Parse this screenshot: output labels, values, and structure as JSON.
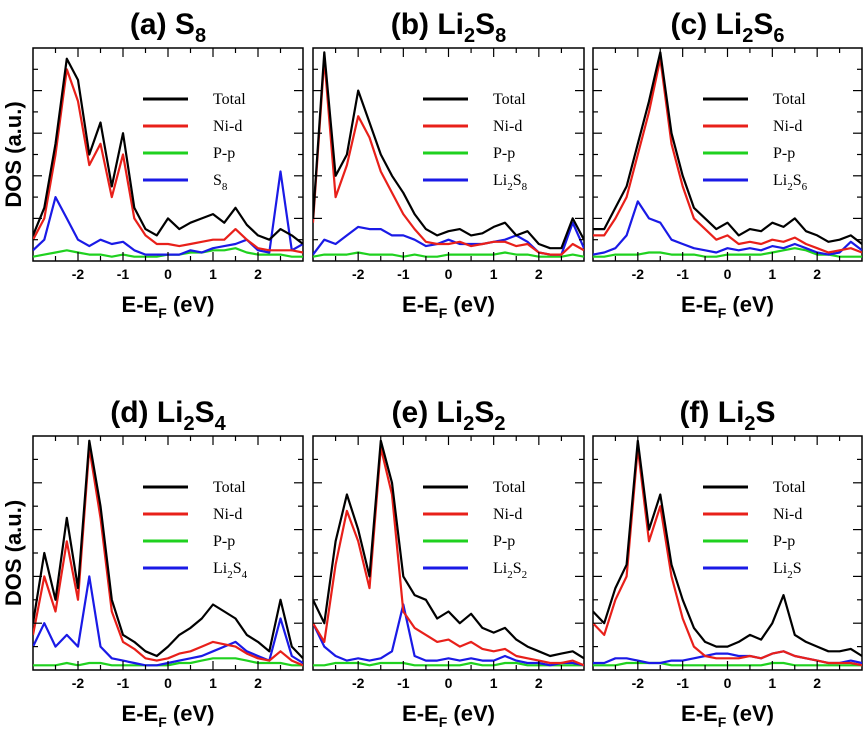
{
  "figure": {
    "xlabel": {
      "main": "E-E",
      "sub": "F",
      "unit": " (eV)"
    },
    "ylabel": "DOS (a.u.)"
  },
  "colors": {
    "Total": "#000000",
    "Ni-d": "#e8201a",
    "P-p": "#1fd11f",
    "adsorbate": "#1a1ae6"
  },
  "legend": {
    "total": "Total",
    "nid": "Ni-d",
    "pp": "P-p"
  },
  "panels": [
    {
      "id": "a",
      "title_pre": "(a) S",
      "title_sub": "8",
      "title_post": "",
      "ads_pre": "S",
      "ads_sub": "8",
      "ads_post": "",
      "show_ylabel": true
    },
    {
      "id": "b",
      "title_pre": "(b) Li",
      "title_sub": "2",
      "title_post": "S",
      "title_sub2": "8",
      "ads_pre": "Li",
      "ads_sub": "2",
      "ads_post": "S",
      "ads_sub2": "8",
      "show_ylabel": false
    },
    {
      "id": "c",
      "title_pre": "(c) Li",
      "title_sub": "2",
      "title_post": "S",
      "title_sub2": "6",
      "ads_pre": "Li",
      "ads_sub": "2",
      "ads_post": "S",
      "ads_sub2": "6",
      "show_ylabel": false
    },
    {
      "id": "d",
      "title_pre": "(d) Li",
      "title_sub": "2",
      "title_post": "S",
      "title_sub2": "4",
      "ads_pre": "Li",
      "ads_sub": "2",
      "ads_post": "S",
      "ads_sub2": "4",
      "show_ylabel": true
    },
    {
      "id": "e",
      "title_pre": "(e) Li",
      "title_sub": "2",
      "title_post": "S",
      "title_sub2": "2",
      "ads_pre": "Li",
      "ads_sub": "2",
      "ads_post": "S",
      "ads_sub2": "2",
      "show_ylabel": false
    },
    {
      "id": "f",
      "title_pre": "(f) Li",
      "title_sub": "2",
      "title_post": "S",
      "title_sub2": "",
      "ads_pre": "Li",
      "ads_sub": "2",
      "ads_post": "S",
      "ads_sub2": "",
      "show_ylabel": false
    }
  ],
  "chart_data": [
    {
      "type": "line",
      "title": "(a) S8",
      "xlim": [
        -3,
        3
      ],
      "ylim": [
        0,
        10
      ],
      "xticks": [
        -2,
        -1,
        0,
        1,
        2
      ],
      "x": [
        -3,
        -2.75,
        -2.5,
        -2.25,
        -2,
        -1.75,
        -1.5,
        -1.25,
        -1,
        -0.75,
        -0.5,
        -0.25,
        0,
        0.25,
        0.5,
        0.75,
        1,
        1.25,
        1.5,
        1.75,
        2,
        2.25,
        2.5,
        2.75,
        3
      ],
      "series": [
        {
          "name": "Total",
          "values": [
            1.2,
            2.5,
            5.5,
            9.5,
            8.5,
            5,
            6.5,
            3.5,
            6,
            2.5,
            1.5,
            1.2,
            2,
            1.5,
            1.8,
            2,
            2.2,
            1.8,
            2.5,
            1.7,
            1.2,
            1,
            1.5,
            1.2,
            0.8
          ]
        },
        {
          "name": "Ni-d",
          "values": [
            1,
            2,
            5,
            9,
            7.5,
            4.5,
            5.5,
            3,
            5,
            2,
            1.2,
            0.8,
            0.8,
            0.7,
            0.8,
            0.9,
            1,
            1,
            1.5,
            1,
            0.6,
            0.5,
            0.5,
            0.5,
            0.4
          ]
        },
        {
          "name": "P-p",
          "values": [
            0.2,
            0.3,
            0.4,
            0.5,
            0.4,
            0.3,
            0.3,
            0.2,
            0.3,
            0.2,
            0.2,
            0.2,
            0.3,
            0.3,
            0.4,
            0.4,
            0.5,
            0.5,
            0.6,
            0.4,
            0.3,
            0.3,
            0.3,
            0.2,
            0.2
          ]
        },
        {
          "name": "S8",
          "values": [
            0.5,
            1,
            3,
            2,
            1,
            0.7,
            1,
            0.8,
            0.9,
            0.5,
            0.3,
            0.3,
            0.3,
            0.3,
            0.5,
            0.4,
            0.6,
            0.7,
            0.8,
            1,
            0.5,
            0.4,
            4.2,
            0.5,
            0.8
          ]
        }
      ]
    },
    {
      "type": "line",
      "title": "(b) Li2S8",
      "xlim": [
        -3,
        3
      ],
      "ylim": [
        0,
        10
      ],
      "xticks": [
        -2,
        -1,
        0,
        1,
        2
      ],
      "x": [
        -3,
        -2.75,
        -2.5,
        -2.25,
        -2,
        -1.75,
        -1.5,
        -1.25,
        -1,
        -0.75,
        -0.5,
        -0.25,
        0,
        0.25,
        0.5,
        0.75,
        1,
        1.25,
        1.5,
        1.75,
        2,
        2.25,
        2.5,
        2.75,
        3
      ],
      "series": [
        {
          "name": "Total",
          "values": [
            2,
            9.8,
            4,
            5,
            8,
            6.5,
            5,
            4,
            3.2,
            2.2,
            1.5,
            1.2,
            1.4,
            1.5,
            1.2,
            1.3,
            1.6,
            1.8,
            1.2,
            1.4,
            0.8,
            0.6,
            0.6,
            2,
            1
          ]
        },
        {
          "name": "Ni-d",
          "values": [
            1.8,
            9.5,
            3,
            4.5,
            6.8,
            5.8,
            4.2,
            3.2,
            2.2,
            1.5,
            0.9,
            0.8,
            0.8,
            0.9,
            0.7,
            0.8,
            0.9,
            0.9,
            0.7,
            0.8,
            0.4,
            0.3,
            0.3,
            0.8,
            0.5
          ]
        },
        {
          "name": "P-p",
          "values": [
            0.2,
            0.3,
            0.3,
            0.3,
            0.4,
            0.3,
            0.3,
            0.3,
            0.2,
            0.3,
            0.2,
            0.2,
            0.3,
            0.3,
            0.3,
            0.3,
            0.3,
            0.4,
            0.3,
            0.3,
            0.2,
            0.2,
            0.2,
            0.3,
            0.2
          ]
        },
        {
          "name": "Li2S8",
          "values": [
            0.3,
            1,
            0.8,
            1.2,
            1.6,
            1.5,
            1.5,
            1.2,
            1.2,
            1,
            0.7,
            0.8,
            1,
            0.8,
            0.8,
            0.8,
            0.9,
            1,
            1.2,
            0.9,
            0.4,
            0.3,
            0.3,
            1.8,
            0.6
          ]
        }
      ]
    },
    {
      "type": "line",
      "title": "(c) Li2S6",
      "xlim": [
        -3,
        3
      ],
      "ylim": [
        0,
        10
      ],
      "xticks": [
        -2,
        -1,
        0,
        1,
        2
      ],
      "x": [
        -3,
        -2.75,
        -2.5,
        -2.25,
        -2,
        -1.75,
        -1.5,
        -1.25,
        -1,
        -0.75,
        -0.5,
        -0.25,
        0,
        0.25,
        0.5,
        0.75,
        1,
        1.25,
        1.5,
        1.75,
        2,
        2.25,
        2.5,
        2.75,
        3
      ],
      "series": [
        {
          "name": "Total",
          "values": [
            1.5,
            1.5,
            2.5,
            3.5,
            5.5,
            7.5,
            9.8,
            6,
            4,
            2.5,
            2,
            1.5,
            1.8,
            1.2,
            1.5,
            1.4,
            1.8,
            1.6,
            2,
            1.4,
            1.2,
            0.9,
            1,
            1.2,
            0.8
          ]
        },
        {
          "name": "Ni-d",
          "values": [
            1.2,
            1.2,
            2,
            3,
            5,
            7,
            9.5,
            5.5,
            3.5,
            2,
            1.5,
            1,
            1.2,
            0.8,
            0.9,
            0.8,
            1,
            0.9,
            1.1,
            0.8,
            0.6,
            0.4,
            0.5,
            0.6,
            0.4
          ]
        },
        {
          "name": "P-p",
          "values": [
            0.2,
            0.2,
            0.3,
            0.3,
            0.3,
            0.4,
            0.4,
            0.3,
            0.3,
            0.3,
            0.2,
            0.2,
            0.3,
            0.3,
            0.3,
            0.3,
            0.4,
            0.5,
            0.6,
            0.5,
            0.3,
            0.3,
            0.2,
            0.2,
            0.2
          ]
        },
        {
          "name": "Li2S6",
          "values": [
            0.3,
            0.4,
            0.6,
            1.2,
            2.8,
            2,
            1.8,
            1,
            0.8,
            0.6,
            0.5,
            0.4,
            0.6,
            0.5,
            0.6,
            0.5,
            0.7,
            0.6,
            0.8,
            0.6,
            0.4,
            0.3,
            0.4,
            0.9,
            0.5
          ]
        }
      ]
    },
    {
      "type": "line",
      "title": "(d) Li2S4",
      "xlim": [
        -3,
        3
      ],
      "ylim": [
        0,
        10
      ],
      "xticks": [
        -2,
        -1,
        0,
        1,
        2
      ],
      "x": [
        -3,
        -2.75,
        -2.5,
        -2.25,
        -2,
        -1.75,
        -1.5,
        -1.25,
        -1,
        -0.75,
        -0.5,
        -0.25,
        0,
        0.25,
        0.5,
        0.75,
        1,
        1.25,
        1.5,
        1.75,
        2,
        2.25,
        2.5,
        2.75,
        3
      ],
      "series": [
        {
          "name": "Total",
          "values": [
            2,
            5,
            3,
            6.5,
            3.5,
            9.8,
            7,
            3,
            1.5,
            1.2,
            0.8,
            0.6,
            1,
            1.5,
            1.8,
            2.2,
            2.8,
            2.5,
            2.2,
            1.5,
            1.2,
            0.8,
            3,
            1,
            0.5
          ]
        },
        {
          "name": "Ni-d",
          "values": [
            1.5,
            4,
            2.5,
            5.5,
            3,
            9.5,
            6.5,
            2.5,
            1.2,
            0.9,
            0.5,
            0.4,
            0.5,
            0.7,
            0.8,
            1,
            1.2,
            1.1,
            1,
            0.7,
            0.5,
            0.4,
            0.8,
            0.4,
            0.2
          ]
        },
        {
          "name": "P-p",
          "values": [
            0.2,
            0.2,
            0.2,
            0.3,
            0.2,
            0.3,
            0.3,
            0.2,
            0.2,
            0.2,
            0.2,
            0.2,
            0.2,
            0.3,
            0.3,
            0.4,
            0.5,
            0.5,
            0.5,
            0.4,
            0.3,
            0.3,
            0.3,
            0.2,
            0.2
          ]
        },
        {
          "name": "Li2S4",
          "values": [
            1,
            2,
            1,
            1.5,
            1,
            4,
            1,
            0.5,
            0.4,
            0.3,
            0.2,
            0.2,
            0.3,
            0.4,
            0.5,
            0.6,
            0.8,
            1,
            1.2,
            0.8,
            0.6,
            0.4,
            2.2,
            0.6,
            0.3
          ]
        }
      ]
    },
    {
      "type": "line",
      "title": "(e) Li2S2",
      "xlim": [
        -3,
        3
      ],
      "ylim": [
        0,
        10
      ],
      "xticks": [
        -2,
        -1,
        0,
        1,
        2
      ],
      "x": [
        -3,
        -2.75,
        -2.5,
        -2.25,
        -2,
        -1.75,
        -1.5,
        -1.25,
        -1,
        -0.75,
        -0.5,
        -0.25,
        0,
        0.25,
        0.5,
        0.75,
        1,
        1.25,
        1.5,
        1.75,
        2,
        2.25,
        2.5,
        2.75,
        3
      ],
      "series": [
        {
          "name": "Total",
          "values": [
            3,
            2,
            5.5,
            7.5,
            6,
            4,
            9.8,
            8,
            4,
            3.2,
            3,
            2.2,
            2.5,
            2,
            2.4,
            1.8,
            1.6,
            1.8,
            1.3,
            1,
            0.8,
            0.6,
            0.7,
            0.8,
            0.5
          ]
        },
        {
          "name": "Ni-d",
          "values": [
            2,
            1.2,
            4.5,
            6.8,
            5.5,
            3.5,
            9.5,
            7.5,
            2.5,
            1.8,
            1.5,
            1.2,
            1.3,
            1,
            1.2,
            0.9,
            0.8,
            0.9,
            0.6,
            0.5,
            0.4,
            0.3,
            0.3,
            0.4,
            0.2
          ]
        },
        {
          "name": "P-p",
          "values": [
            0.2,
            0.2,
            0.3,
            0.3,
            0.3,
            0.2,
            0.3,
            0.3,
            0.3,
            0.2,
            0.2,
            0.2,
            0.2,
            0.2,
            0.3,
            0.2,
            0.2,
            0.3,
            0.3,
            0.2,
            0.2,
            0.2,
            0.2,
            0.2,
            0.2
          ]
        },
        {
          "name": "Li2S2",
          "values": [
            2,
            1,
            0.6,
            0.4,
            0.5,
            0.4,
            0.5,
            0.8,
            2.8,
            0.6,
            0.4,
            0.4,
            0.5,
            0.4,
            0.5,
            0.4,
            0.4,
            0.6,
            0.4,
            0.3,
            0.3,
            0.2,
            0.3,
            0.3,
            0.2
          ]
        }
      ]
    },
    {
      "type": "line",
      "title": "(f) Li2S",
      "xlim": [
        -3,
        3
      ],
      "ylim": [
        0,
        10
      ],
      "xticks": [
        -2,
        -1,
        0,
        1,
        2
      ],
      "x": [
        -3,
        -2.75,
        -2.5,
        -2.25,
        -2,
        -1.75,
        -1.5,
        -1.25,
        -1,
        -0.75,
        -0.5,
        -0.25,
        0,
        0.25,
        0.5,
        0.75,
        1,
        1.25,
        1.5,
        1.75,
        2,
        2.25,
        2.5,
        2.75,
        3
      ],
      "series": [
        {
          "name": "Total",
          "values": [
            2.5,
            2,
            3.5,
            4.5,
            9.8,
            6,
            7.5,
            4.5,
            3,
            1.8,
            1.2,
            1,
            1,
            1.2,
            1.5,
            1.3,
            2,
            3.2,
            1.5,
            1.2,
            1,
            0.8,
            0.8,
            0.9,
            0.6
          ]
        },
        {
          "name": "Ni-d",
          "values": [
            2,
            1.5,
            3,
            4,
            9.5,
            5.5,
            7,
            4,
            2.2,
            1,
            0.6,
            0.5,
            0.5,
            0.5,
            0.6,
            0.5,
            0.7,
            0.8,
            0.6,
            0.5,
            0.4,
            0.3,
            0.3,
            0.3,
            0.2
          ]
        },
        {
          "name": "P-p",
          "values": [
            0.2,
            0.2,
            0.2,
            0.3,
            0.3,
            0.3,
            0.3,
            0.2,
            0.2,
            0.2,
            0.2,
            0.2,
            0.2,
            0.2,
            0.2,
            0.2,
            0.3,
            0.3,
            0.2,
            0.2,
            0.2,
            0.2,
            0.2,
            0.2,
            0.2
          ]
        },
        {
          "name": "Li2S",
          "values": [
            0.3,
            0.3,
            0.5,
            0.5,
            0.4,
            0.3,
            0.3,
            0.4,
            0.4,
            0.5,
            0.6,
            0.7,
            0.7,
            0.6,
            0.6,
            0.5,
            0.7,
            0.8,
            0.6,
            0.5,
            0.4,
            0.3,
            0.3,
            0.4,
            0.3
          ]
        }
      ]
    }
  ]
}
